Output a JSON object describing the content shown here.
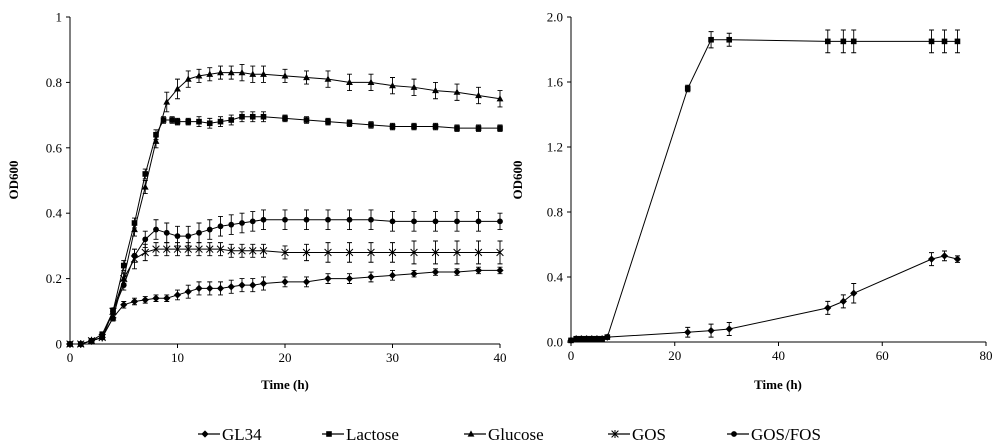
{
  "chart_data": [
    {
      "type": "line",
      "title": "",
      "xlabel": "Time (h)",
      "ylabel": "OD600",
      "xlim": [
        0,
        40
      ],
      "ylim": [
        0,
        1
      ],
      "x_ticks": [
        "0",
        "10",
        "20",
        "30",
        "40"
      ],
      "y_ticks": [
        "0",
        "0.2",
        "0.4",
        "0.6",
        "0.8",
        "1"
      ],
      "grid": false,
      "error_bars": true,
      "series": [
        {
          "name": "Glucose",
          "marker": "triangle",
          "points": [
            [
              0,
              0
            ],
            [
              1,
              0
            ],
            [
              2,
              0.01
            ],
            [
              3,
              0.02
            ],
            [
              4,
              0.08
            ],
            [
              5,
              0.2
            ],
            [
              6,
              0.35
            ],
            [
              7,
              0.48
            ],
            [
              8,
              0.62
            ],
            [
              9,
              0.74
            ],
            [
              10,
              0.78
            ],
            [
              11,
              0.81
            ],
            [
              12,
              0.82
            ],
            [
              13,
              0.825
            ],
            [
              14,
              0.83
            ],
            [
              15,
              0.83
            ],
            [
              16,
              0.83
            ],
            [
              17,
              0.825
            ],
            [
              18,
              0.825
            ],
            [
              20,
              0.82
            ],
            [
              22,
              0.815
            ],
            [
              24,
              0.81
            ],
            [
              26,
              0.8
            ],
            [
              28,
              0.8
            ],
            [
              30,
              0.79
            ],
            [
              32,
              0.785
            ],
            [
              34,
              0.775
            ],
            [
              36,
              0.77
            ],
            [
              38,
              0.76
            ],
            [
              40,
              0.75
            ]
          ],
          "errors": [
            0,
            0,
            0,
            0.005,
            0.01,
            0.015,
            0.02,
            0.02,
            0.02,
            0.03,
            0.03,
            0.025,
            0.02,
            0.02,
            0.02,
            0.02,
            0.025,
            0.025,
            0.025,
            0.02,
            0.02,
            0.025,
            0.025,
            0.025,
            0.025,
            0.025,
            0.025,
            0.025,
            0.025,
            0.025
          ]
        },
        {
          "name": "Lactose",
          "marker": "square",
          "points": [
            [
              0,
              0
            ],
            [
              1,
              0
            ],
            [
              2,
              0.01
            ],
            [
              3,
              0.03
            ],
            [
              4,
              0.1
            ],
            [
              5,
              0.24
            ],
            [
              6,
              0.37
            ],
            [
              7,
              0.52
            ],
            [
              8,
              0.64
            ],
            [
              8.7,
              0.685
            ],
            [
              9.5,
              0.685
            ],
            [
              10,
              0.68
            ],
            [
              11,
              0.68
            ],
            [
              12,
              0.68
            ],
            [
              13,
              0.675
            ],
            [
              14,
              0.68
            ],
            [
              15,
              0.685
            ],
            [
              16,
              0.695
            ],
            [
              17,
              0.695
            ],
            [
              18,
              0.695
            ],
            [
              20,
              0.69
            ],
            [
              22,
              0.685
            ],
            [
              24,
              0.68
            ],
            [
              26,
              0.675
            ],
            [
              28,
              0.67
            ],
            [
              30,
              0.665
            ],
            [
              32,
              0.665
            ],
            [
              34,
              0.665
            ],
            [
              36,
              0.66
            ],
            [
              38,
              0.66
            ],
            [
              40,
              0.66
            ]
          ],
          "errors": [
            0,
            0,
            0,
            0.005,
            0.01,
            0.015,
            0.015,
            0.015,
            0.015,
            0.01,
            0.01,
            0.01,
            0.01,
            0.015,
            0.015,
            0.015,
            0.015,
            0.015,
            0.015,
            0.015,
            0.01,
            0.01,
            0.01,
            0.01,
            0.01,
            0.01,
            0.01,
            0.01,
            0.01,
            0.01,
            0.01
          ]
        },
        {
          "name": "GOS/FOS",
          "marker": "circle",
          "points": [
            [
              0,
              0
            ],
            [
              1,
              0
            ],
            [
              2,
              0.01
            ],
            [
              3,
              0.02
            ],
            [
              4,
              0.1
            ],
            [
              5,
              0.18
            ],
            [
              6,
              0.27
            ],
            [
              7,
              0.32
            ],
            [
              8,
              0.35
            ],
            [
              9,
              0.34
            ],
            [
              10,
              0.33
            ],
            [
              11,
              0.33
            ],
            [
              12,
              0.34
            ],
            [
              13,
              0.35
            ],
            [
              14,
              0.36
            ],
            [
              15,
              0.365
            ],
            [
              16,
              0.37
            ],
            [
              17,
              0.375
            ],
            [
              18,
              0.38
            ],
            [
              20,
              0.38
            ],
            [
              22,
              0.38
            ],
            [
              24,
              0.38
            ],
            [
              26,
              0.38
            ],
            [
              28,
              0.38
            ],
            [
              30,
              0.375
            ],
            [
              32,
              0.375
            ],
            [
              34,
              0.375
            ],
            [
              36,
              0.375
            ],
            [
              38,
              0.375
            ],
            [
              40,
              0.375
            ]
          ],
          "errors": [
            0,
            0,
            0,
            0.005,
            0.01,
            0.015,
            0.02,
            0.025,
            0.03,
            0.03,
            0.03,
            0.03,
            0.03,
            0.03,
            0.03,
            0.03,
            0.03,
            0.03,
            0.03,
            0.03,
            0.03,
            0.03,
            0.03,
            0.03,
            0.03,
            0.03,
            0.03,
            0.03,
            0.03,
            0.025
          ]
        },
        {
          "name": "GOS",
          "marker": "asterisk",
          "points": [
            [
              0,
              0
            ],
            [
              1,
              0
            ],
            [
              2,
              0.01
            ],
            [
              3,
              0.02
            ],
            [
              4,
              0.1
            ],
            [
              5,
              0.2
            ],
            [
              6,
              0.26
            ],
            [
              7,
              0.28
            ],
            [
              8,
              0.29
            ],
            [
              9,
              0.29
            ],
            [
              10,
              0.29
            ],
            [
              11,
              0.29
            ],
            [
              12,
              0.29
            ],
            [
              13,
              0.29
            ],
            [
              14,
              0.29
            ],
            [
              15,
              0.285
            ],
            [
              16,
              0.285
            ],
            [
              17,
              0.285
            ],
            [
              18,
              0.285
            ],
            [
              20,
              0.28
            ],
            [
              22,
              0.28
            ],
            [
              24,
              0.28
            ],
            [
              26,
              0.28
            ],
            [
              28,
              0.28
            ],
            [
              30,
              0.28
            ],
            [
              32,
              0.28
            ],
            [
              34,
              0.28
            ],
            [
              36,
              0.28
            ],
            [
              38,
              0.28
            ],
            [
              40,
              0.28
            ]
          ],
          "errors": [
            0,
            0,
            0,
            0.005,
            0.01,
            0.02,
            0.03,
            0.025,
            0.02,
            0.02,
            0.02,
            0.02,
            0.02,
            0.02,
            0.02,
            0.02,
            0.02,
            0.02,
            0.02,
            0.02,
            0.025,
            0.03,
            0.03,
            0.03,
            0.03,
            0.035,
            0.035,
            0.035,
            0.035,
            0.035
          ]
        },
        {
          "name": "GL34",
          "marker": "diamond",
          "points": [
            [
              0,
              0
            ],
            [
              1,
              0
            ],
            [
              2,
              0.01
            ],
            [
              3,
              0.02
            ],
            [
              4,
              0.08
            ],
            [
              5,
              0.12
            ],
            [
              6,
              0.13
            ],
            [
              7,
              0.135
            ],
            [
              8,
              0.14
            ],
            [
              9,
              0.14
            ],
            [
              10,
              0.15
            ],
            [
              11,
              0.16
            ],
            [
              12,
              0.17
            ],
            [
              13,
              0.17
            ],
            [
              14,
              0.17
            ],
            [
              15,
              0.175
            ],
            [
              16,
              0.18
            ],
            [
              17,
              0.18
            ],
            [
              18,
              0.185
            ],
            [
              20,
              0.19
            ],
            [
              22,
              0.19
            ],
            [
              24,
              0.2
            ],
            [
              26,
              0.2
            ],
            [
              28,
              0.205
            ],
            [
              30,
              0.21
            ],
            [
              32,
              0.215
            ],
            [
              34,
              0.22
            ],
            [
              36,
              0.22
            ],
            [
              38,
              0.225
            ],
            [
              40,
              0.225
            ]
          ],
          "errors": [
            0,
            0,
            0,
            0.005,
            0.01,
            0.01,
            0.01,
            0.01,
            0.01,
            0.01,
            0.015,
            0.02,
            0.02,
            0.02,
            0.02,
            0.02,
            0.02,
            0.02,
            0.02,
            0.015,
            0.015,
            0.015,
            0.015,
            0.015,
            0.015,
            0.01,
            0.01,
            0.01,
            0.01,
            0.01
          ]
        }
      ]
    },
    {
      "type": "line",
      "title": "",
      "xlabel": "Time (h)",
      "ylabel": "OD600",
      "xlim": [
        0,
        80
      ],
      "ylim": [
        0,
        2
      ],
      "x_ticks": [
        "0",
        "20",
        "40",
        "60",
        "80"
      ],
      "y_ticks": [
        "0.0",
        "0.4",
        "0.8",
        "1.2",
        "1.6",
        "2.0"
      ],
      "grid": false,
      "error_bars": true,
      "series": [
        {
          "name": "Lactose",
          "marker": "square",
          "points": [
            [
              0,
              0.01
            ],
            [
              1,
              0.02
            ],
            [
              2,
              0.02
            ],
            [
              3,
              0.02
            ],
            [
              4,
              0.02
            ],
            [
              5,
              0.02
            ],
            [
              6,
              0.02
            ],
            [
              7,
              0.03
            ],
            [
              22.5,
              1.56
            ],
            [
              27,
              1.86
            ],
            [
              30.5,
              1.86
            ],
            [
              49.5,
              1.85
            ],
            [
              52.5,
              1.85
            ],
            [
              54.5,
              1.85
            ],
            [
              69.5,
              1.85
            ],
            [
              72,
              1.85
            ],
            [
              74.5,
              1.85
            ]
          ],
          "errors": [
            0,
            0,
            0,
            0,
            0,
            0,
            0,
            0.01,
            0.02,
            0.05,
            0.04,
            0.07,
            0.07,
            0.07,
            0.07,
            0.07,
            0.07
          ]
        },
        {
          "name": "GL34",
          "marker": "diamond",
          "points": [
            [
              0,
              0.01
            ],
            [
              1,
              0.02
            ],
            [
              2,
              0.02
            ],
            [
              3,
              0.02
            ],
            [
              4,
              0.02
            ],
            [
              5,
              0.02
            ],
            [
              6,
              0.02
            ],
            [
              7,
              0.03
            ],
            [
              22.5,
              0.06
            ],
            [
              27,
              0.07
            ],
            [
              30.5,
              0.08
            ],
            [
              49.5,
              0.21
            ],
            [
              52.5,
              0.25
            ],
            [
              54.5,
              0.3
            ],
            [
              69.5,
              0.51
            ],
            [
              72,
              0.53
            ],
            [
              74.5,
              0.51
            ]
          ],
          "errors": [
            0,
            0,
            0,
            0,
            0,
            0,
            0,
            0.01,
            0.03,
            0.04,
            0.04,
            0.04,
            0.04,
            0.06,
            0.04,
            0.03,
            0.02
          ]
        }
      ]
    }
  ],
  "legend": {
    "placement": "bottom",
    "items": [
      {
        "label": "GL34",
        "marker": "diamond"
      },
      {
        "label": "Lactose",
        "marker": "square"
      },
      {
        "label": "Glucose",
        "marker": "triangle"
      },
      {
        "label": "GOS",
        "marker": "asterisk"
      },
      {
        "label": "GOS/FOS",
        "marker": "circle"
      }
    ]
  },
  "colors": {
    "ink": "#000000",
    "background": "#ffffff"
  }
}
